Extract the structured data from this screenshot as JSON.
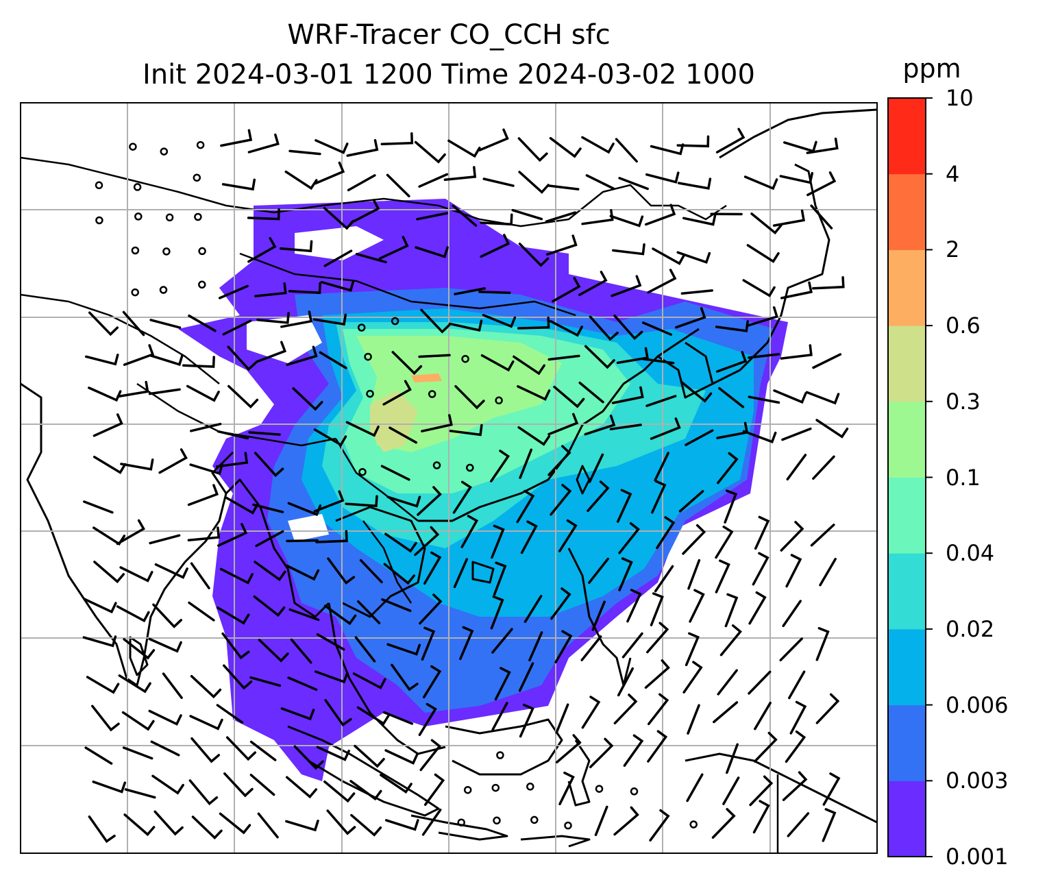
{
  "title_line1": "WRF-Tracer CO_CCH sfc",
  "title_line2": "Init 2024-03-01 1200 Time 2024-03-02 1000",
  "colorbar": {
    "unit": "ppm",
    "levels": [
      "0.001",
      "0.003",
      "0.006",
      "0.02",
      "0.04",
      "0.1",
      "0.3",
      "0.6",
      "2",
      "4",
      "10"
    ],
    "colors": [
      "#6a2cff",
      "#3372f4",
      "#05b1ea",
      "#33dcd4",
      "#6bf6bb",
      "#9df892",
      "#cfe08a",
      "#fdae61",
      "#ff6f3a",
      "#ff2a17"
    ]
  },
  "map": {
    "gridlines": true,
    "features": [
      "coastlines",
      "country-borders",
      "wind-barbs",
      "calm-wind-circles",
      "filled-tracer-contours"
    ]
  }
}
